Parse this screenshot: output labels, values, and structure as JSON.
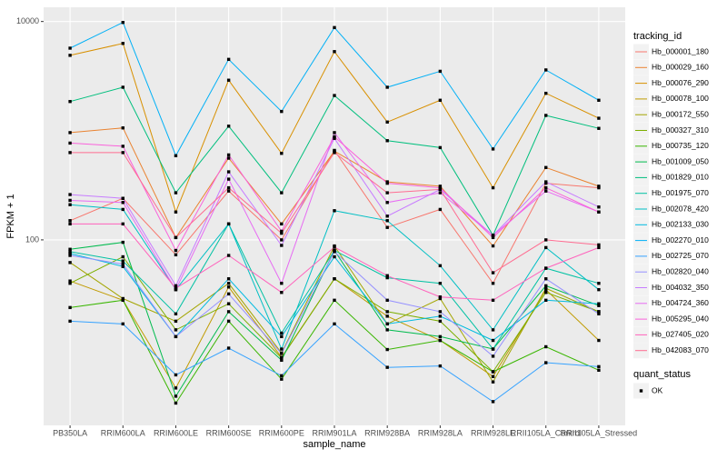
{
  "chart_data": {
    "type": "line",
    "x_label": "sample_name",
    "y_label": "FPKM + 1",
    "categories": [
      "PB350LA",
      "RRIM600LA",
      "RRIM600LE",
      "RRIM600SE",
      "RRIM600PE",
      "RRIM901LA",
      "RRIM928BA",
      "RRIM928LA",
      "RRIM928LE",
      "RRII105LA_Control",
      "RRII105LA_Stressed"
    ],
    "log_y": true,
    "grid": true,
    "ylim": [
      2,
      13500
    ],
    "yticks": [
      100,
      10000
    ],
    "legend_title": "tracking_id",
    "legend_position": "right",
    "point_color": "#000000",
    "shape_legend": {
      "title": "quant_status",
      "labels": [
        "OK"
      ]
    },
    "series": [
      {
        "name": "Hb_000001_180",
        "color": "#F8766D",
        "values": [
          150,
          240,
          73,
          280,
          100,
          660,
          130,
          190,
          40,
          330,
          300
        ]
      },
      {
        "name": "Hb_000029_160",
        "color": "#EA8331",
        "values": [
          960,
          1060,
          105,
          560,
          140,
          650,
          340,
          310,
          88,
          460,
          310
        ]
      },
      {
        "name": "Hb_000076_290",
        "color": "#D89000",
        "values": [
          4900,
          6300,
          180,
          2900,
          620,
          5300,
          1200,
          1900,
          300,
          2200,
          1300
        ]
      },
      {
        "name": "Hb_000078_100",
        "color": "#C09B00",
        "values": [
          42,
          28,
          4.4,
          37,
          8.4,
          44,
          20,
          12,
          5.6,
          35,
          12
        ]
      },
      {
        "name": "Hb_000172_550",
        "color": "#A3A500",
        "values": [
          62,
          29,
          18,
          40,
          9.2,
          88,
          17,
          29,
          5,
          36,
          22
        ]
      },
      {
        "name": "Hb_000327_310",
        "color": "#7CAE00",
        "values": [
          40,
          70,
          15,
          26,
          8.3,
          44,
          22,
          18,
          6.2,
          33,
          22
        ]
      },
      {
        "name": "Hb_000735_120",
        "color": "#39B600",
        "values": [
          24,
          28,
          3.2,
          18,
          5.3,
          28,
          9.9,
          12,
          6.2,
          10.5,
          6.4
        ]
      },
      {
        "name": "Hb_001009_050",
        "color": "#00BB4E",
        "values": [
          82,
          95,
          3.7,
          22,
          7.9,
          80,
          15,
          13,
          10,
          38,
          25
        ]
      },
      {
        "name": "Hb_001829_010",
        "color": "#00BF7D",
        "values": [
          1850,
          2500,
          270,
          1100,
          270,
          2100,
          810,
          700,
          110,
          1380,
          1050
        ]
      },
      {
        "name": "Hb_001975_070",
        "color": "#00C1A3",
        "values": [
          78,
          64,
          21,
          140,
          14,
          80,
          45,
          40,
          10,
          55,
          40
        ]
      },
      {
        "name": "Hb_002078_420",
        "color": "#00BFC4",
        "values": [
          210,
          190,
          35,
          140,
          10,
          185,
          150,
          58,
          15,
          85,
          35
        ]
      },
      {
        "name": "Hb_002133_030",
        "color": "#00BAE0",
        "values": [
          75,
          57,
          13,
          44,
          13,
          70,
          17,
          20,
          12,
          28,
          26
        ]
      },
      {
        "name": "Hb_002270_010",
        "color": "#00B0F6",
        "values": [
          5700,
          9800,
          590,
          4500,
          1500,
          8800,
          2500,
          3500,
          680,
          3600,
          1900
        ]
      },
      {
        "name": "Hb_002725_070",
        "color": "#35A2FF",
        "values": [
          18,
          17,
          5.8,
          10.2,
          5.7,
          17,
          6.8,
          7,
          3.3,
          7.5,
          6.9
        ]
      },
      {
        "name": "Hb_002820_040",
        "color": "#9590FF",
        "values": [
          72,
          60,
          13,
          32,
          9.1,
          78,
          28,
          22,
          8.6,
          44,
          21
        ]
      },
      {
        "name": "Hb_004032_350",
        "color": "#C77CFF",
        "values": [
          260,
          240,
          38,
          420,
          89,
          850,
          165,
          290,
          110,
          340,
          200
        ]
      },
      {
        "name": "Hb_004724_360",
        "color": "#E76BF3",
        "values": [
          230,
          220,
          35,
          360,
          40,
          960,
          220,
          270,
          110,
          280,
          180
        ]
      },
      {
        "name": "Hb_005295_040",
        "color": "#FA62DB",
        "values": [
          770,
          720,
          80,
          600,
          120,
          880,
          330,
          300,
          105,
          300,
          180
        ]
      },
      {
        "name": "Hb_027405_020",
        "color": "#FF62BC",
        "values": [
          140,
          140,
          36,
          72,
          33,
          86,
          47,
          30,
          28,
          55,
          85
        ]
      },
      {
        "name": "Hb_042083_070",
        "color": "#FF6C91",
        "values": [
          630,
          630,
          105,
          300,
          115,
          630,
          270,
          290,
          50,
          100,
          90
        ]
      }
    ]
  }
}
